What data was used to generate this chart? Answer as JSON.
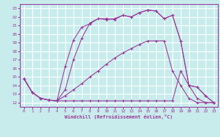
{
  "xlabel": "Windchill (Refroidissement éolien,°C)",
  "bg_color": "#c8ecec",
  "grid_color": "#ffffff",
  "line_color": "#993399",
  "xlim": [
    -0.5,
    23.5
  ],
  "ylim": [
    11.5,
    23.5
  ],
  "yticks": [
    12,
    13,
    14,
    15,
    16,
    17,
    18,
    19,
    20,
    21,
    22,
    23
  ],
  "xticks": [
    0,
    1,
    2,
    3,
    4,
    5,
    6,
    7,
    8,
    9,
    10,
    11,
    12,
    13,
    14,
    15,
    16,
    17,
    18,
    19,
    20,
    21,
    22,
    23
  ],
  "series1_x": [
    0,
    1,
    2,
    3,
    4,
    5,
    6,
    7,
    8,
    9,
    10,
    11,
    12,
    13,
    14,
    15,
    16,
    17,
    18,
    19,
    20,
    21,
    22,
    23
  ],
  "series1_y": [
    14.8,
    13.2,
    12.5,
    12.3,
    12.2,
    16.2,
    19.3,
    20.8,
    21.2,
    21.8,
    21.7,
    21.8,
    22.2,
    22.0,
    22.5,
    22.8,
    22.7,
    21.8,
    22.2,
    19.2,
    14.0,
    13.8,
    12.8,
    12.0
  ],
  "series2_x": [
    0,
    1,
    2,
    3,
    4,
    5,
    6,
    7,
    8,
    9,
    10,
    11,
    12,
    13,
    14,
    15,
    16,
    17,
    18,
    19,
    20,
    21,
    22,
    23
  ],
  "series2_y": [
    14.8,
    13.2,
    12.5,
    12.3,
    12.2,
    13.5,
    17.0,
    19.5,
    21.3,
    21.8,
    21.8,
    21.7,
    22.2,
    22.0,
    22.5,
    22.8,
    22.7,
    21.8,
    22.2,
    19.2,
    14.0,
    13.8,
    12.8,
    12.0
  ],
  "series3_x": [
    0,
    1,
    2,
    3,
    4,
    5,
    6,
    7,
    8,
    9,
    10,
    11,
    12,
    13,
    14,
    15,
    16,
    17,
    18,
    19,
    20,
    21,
    22,
    23
  ],
  "series3_y": [
    14.8,
    13.2,
    12.5,
    12.3,
    12.2,
    12.2,
    12.2,
    12.2,
    12.2,
    12.2,
    12.2,
    12.2,
    12.2,
    12.2,
    12.2,
    12.2,
    12.2,
    12.2,
    12.2,
    15.7,
    14.0,
    12.5,
    12.0,
    12.0
  ],
  "series4_x": [
    0,
    1,
    2,
    3,
    4,
    5,
    6,
    7,
    8,
    9,
    10,
    11,
    12,
    13,
    14,
    15,
    16,
    17,
    18,
    19,
    20,
    21,
    22,
    23
  ],
  "series4_y": [
    14.8,
    13.2,
    12.5,
    12.3,
    12.2,
    12.8,
    13.5,
    14.2,
    15.0,
    15.7,
    16.5,
    17.2,
    17.8,
    18.3,
    18.8,
    19.2,
    19.2,
    19.2,
    15.7,
    14.0,
    12.5,
    12.0,
    12.0,
    12.0
  ]
}
